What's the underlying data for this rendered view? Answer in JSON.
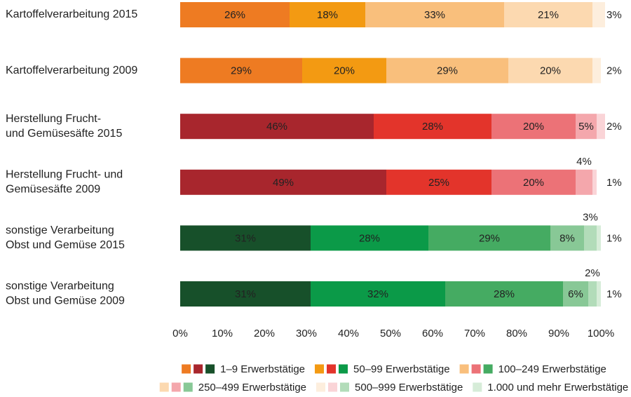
{
  "chart_data": {
    "type": "stacked_barh",
    "categories": [
      [
        "Kartoffelverarbeitung 2015"
      ],
      [
        "Kartoffelverarbeitung 2009"
      ],
      [
        "Herstellung Frucht-",
        "und Gemüsesäfte 2015"
      ],
      [
        "Herstellung Frucht- und",
        "Gemüsesäfte 2009"
      ],
      [
        "sonstige Verarbeitung",
        "Obst und Gemüse 2015"
      ],
      [
        "sonstige Verarbeitung",
        "Obst und Gemüse 2009"
      ]
    ],
    "category_colors": [
      "#ee8a1f",
      "#ee8a1f",
      "#9b2328",
      "#9b2328",
      "#1c7a4b",
      "#1c7a4b"
    ],
    "series": [
      {
        "name": "1–9 Erwerbstätige",
        "colors": [
          "#ee7b22",
          "#ee7b22",
          "#a8262d",
          "#a8262d",
          "#17502a",
          "#17502a"
        ],
        "label_colors": [
          "#fff",
          "#fff",
          "#fff",
          "#fff",
          "#fff",
          "#fff"
        ],
        "values": [
          26,
          29,
          46,
          49,
          31,
          31
        ],
        "value_labels": [
          "26%",
          "29%",
          "46%",
          "49%",
          "31%",
          "31%"
        ]
      },
      {
        "name": "50–99 Erwerbstätige",
        "colors": [
          "#f39a12",
          "#f39a12",
          "#e3342b",
          "#e3342b",
          "#0b9a48",
          "#0b9a48"
        ],
        "label_colors": [
          "#fff",
          "#fff",
          "#fff",
          "#fff",
          "#fff",
          "#fff"
        ],
        "values": [
          18,
          20,
          28,
          25,
          28,
          32
        ],
        "value_labels": [
          "18%",
          "20%",
          "28%",
          "25%",
          "28%",
          "32%"
        ]
      },
      {
        "name": "100–249 Erwerbstätige",
        "colors": [
          "#f9bf7c",
          "#f9bf7c",
          "#ec7277",
          "#ec7277",
          "#45ab62",
          "#45ab62"
        ],
        "label_colors": [
          "#fff",
          "#fff",
          "#fff",
          "#fff",
          "#222",
          "#222"
        ],
        "values": [
          33,
          29,
          20,
          20,
          29,
          28
        ],
        "value_labels": [
          "33%",
          "29%",
          "20%",
          "20%",
          "29%",
          "28%"
        ]
      },
      {
        "name": "250–499 Erwerbstätige",
        "colors": [
          "#fcd9b0",
          "#fcd9b0",
          "#f4a7ac",
          "#f4a7ac",
          "#88c896",
          "#88c896"
        ],
        "label_colors": [
          "#fff",
          "#fff",
          "#fff",
          "#222",
          "#222",
          "#222"
        ],
        "values": [
          21,
          20,
          5,
          4,
          8,
          6
        ],
        "value_labels": [
          "21%",
          "20%",
          "5%",
          "4%",
          "8%",
          "6%"
        ]
      },
      {
        "name": "500–999 Erwerbstätige",
        "colors": [
          "#fdeedd",
          "#fdeedd",
          "#fad4d7",
          "#fad4d7",
          "#b2dcb9",
          "#b2dcb9"
        ],
        "label_colors": [
          "#222",
          "#222",
          "#222",
          "#222",
          "#222",
          "#222"
        ],
        "values": [
          3,
          2,
          2,
          1,
          3,
          2
        ],
        "value_labels": [
          "3%",
          "2%",
          "2%",
          "1%",
          "3%",
          "2%"
        ]
      },
      {
        "name": "1.000 und mehr Erwerbstätige",
        "colors": [
          null,
          null,
          null,
          null,
          "#d6ecd8",
          "#d6ecd8"
        ],
        "label_colors": [
          null,
          null,
          null,
          null,
          "#222",
          "#222"
        ],
        "values": [
          null,
          null,
          null,
          null,
          1,
          1
        ],
        "value_labels": [
          null,
          null,
          null,
          null,
          "1%",
          "1%"
        ]
      }
    ],
    "xlim": [
      0,
      100
    ],
    "xticks": [
      {
        "value": 0,
        "label": "0%"
      },
      {
        "value": 10,
        "label": "10%"
      },
      {
        "value": 20,
        "label": "20%"
      },
      {
        "value": 30,
        "label": "30%"
      },
      {
        "value": 40,
        "label": "40%"
      },
      {
        "value": 50,
        "label": "50%"
      },
      {
        "value": 60,
        "label": "60%"
      },
      {
        "value": 70,
        "label": "70%"
      },
      {
        "value": 80,
        "label": "80%"
      },
      {
        "value": 90,
        "label": "90%"
      },
      {
        "value": 100,
        "label": "100%"
      }
    ],
    "grid": false
  }
}
